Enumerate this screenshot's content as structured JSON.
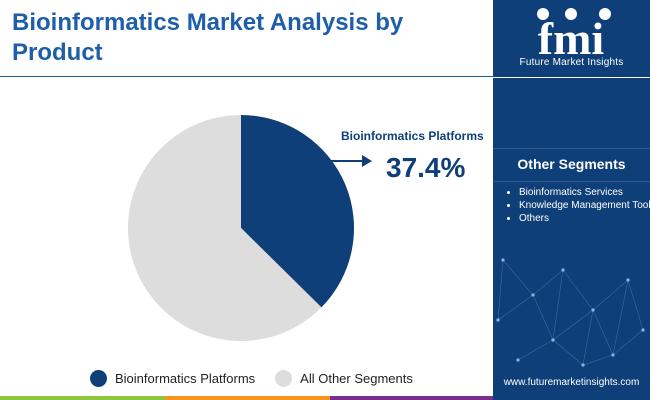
{
  "header": {
    "title": "Bioinformatics Market Analysis by Product"
  },
  "brand": {
    "logo_mark": "fmi",
    "name": "Future Market Insights",
    "website": "www.futuremarketinsights.com"
  },
  "callout": {
    "label": "Bioinformatics Platforms",
    "value_text": "37.4%"
  },
  "other_segments": {
    "title": "Other Segments",
    "items": [
      "Bioinformatics Services",
      "Knowledge Management Tools",
      "Others"
    ]
  },
  "colors": {
    "primary": "#0f3f78",
    "secondary": "#dddddd",
    "title": "#1f5ea8",
    "bar_green": "#8cc63f",
    "bar_orange": "#f7941d",
    "bar_purple": "#7b2d8b"
  },
  "chart_data": {
    "type": "pie",
    "title": "Bioinformatics Market Analysis by Product",
    "slices": [
      {
        "label": "Bioinformatics Platforms",
        "value": 37.4,
        "color": "#0f3f78"
      },
      {
        "label": "All Other Segments",
        "value": 62.6,
        "color": "#dddddd"
      }
    ],
    "start_angle_deg": 0,
    "direction": "clockwise",
    "legend": "bottom",
    "annotations": [
      {
        "text": "37.4%",
        "target": "Bioinformatics Platforms"
      }
    ]
  }
}
